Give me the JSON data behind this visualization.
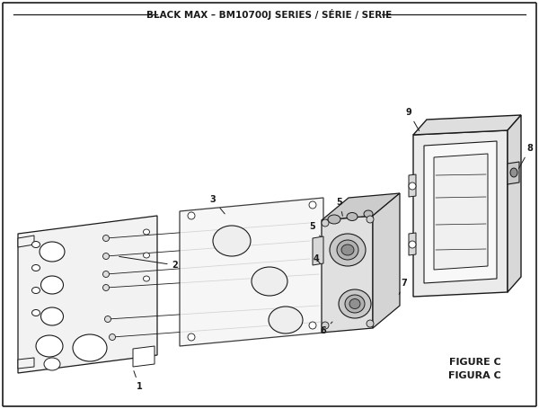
{
  "title": "BLACK MAX – BM10700J SERIES / SÉRIE / SERIE",
  "figure_label": "FIGURE C",
  "figura_label": "FIGURA C",
  "bg_color": "#ffffff",
  "dark": "#1a1a1a",
  "gray": "#888888",
  "light_gray": "#d8d8d8",
  "title_fontsize": 7.5,
  "label_fontsize": 7,
  "fig_label_fontsize": 8
}
